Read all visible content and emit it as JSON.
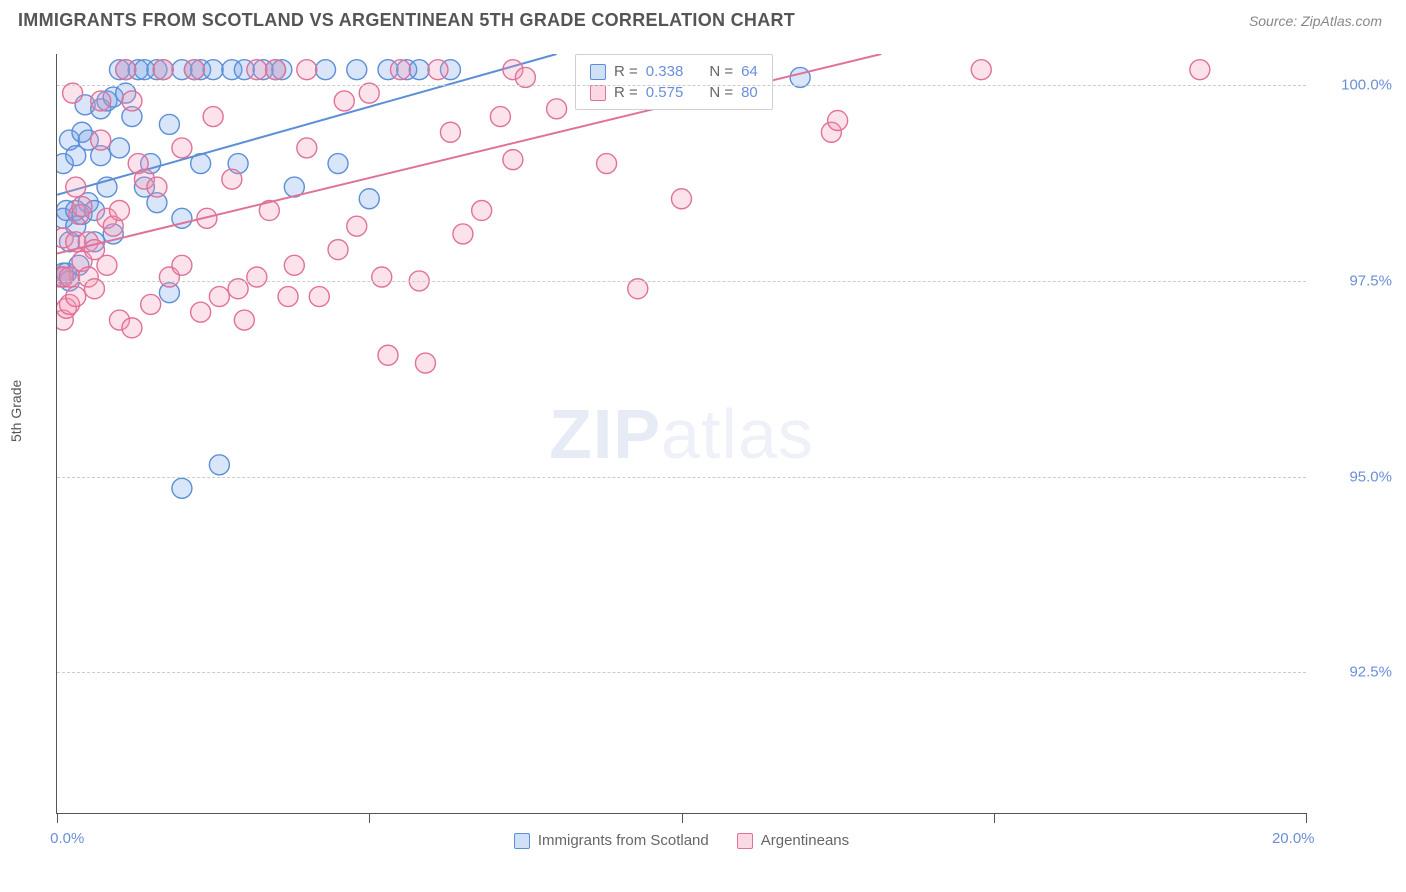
{
  "header": {
    "title": "IMMIGRANTS FROM SCOTLAND VS ARGENTINEAN 5TH GRADE CORRELATION CHART",
    "source": "Source: ZipAtlas.com"
  },
  "watermark": {
    "zip": "ZIP",
    "atlas": "atlas"
  },
  "chart": {
    "type": "scatter",
    "y_axis_label": "5th Grade",
    "x_axis_label": "",
    "xlim": [
      0,
      20
    ],
    "ylim": [
      90.7,
      100.4
    ],
    "x_ticks": [
      0,
      5,
      10,
      15,
      20
    ],
    "x_tick_labels": [
      "0.0%",
      "",
      "",
      "",
      "20.0%"
    ],
    "y_grid": [
      92.5,
      95.0,
      97.5,
      100.0
    ],
    "y_grid_labels": [
      "92.5%",
      "95.0%",
      "97.5%",
      "100.0%"
    ],
    "background_color": "#ffffff",
    "grid_color": "#cccccc",
    "axis_color": "#555555",
    "tick_label_color": "#6a8fd8",
    "axis_label_color": "#555555",
    "marker_radius": 10,
    "marker_stroke_width": 1.4,
    "line_width": 2,
    "series": [
      {
        "name": "Immigrants from Scotland",
        "color_fill": "rgba(120,160,230,0.28)",
        "color_stroke": "#5b8fd6",
        "swatch_fill": "#cfe0f7",
        "swatch_border": "#5b8fd6",
        "R": "0.338",
        "N": "64",
        "regression": {
          "x1": 0,
          "y1": 98.6,
          "x2": 8.0,
          "y2": 100.4
        },
        "points": [
          [
            0.1,
            97.6
          ],
          [
            0.1,
            97.55
          ],
          [
            0.1,
            98.3
          ],
          [
            0.1,
            99.0
          ],
          [
            0.15,
            98.4
          ],
          [
            0.15,
            97.6
          ],
          [
            0.2,
            97.5
          ],
          [
            0.2,
            98.0
          ],
          [
            0.2,
            99.3
          ],
          [
            0.3,
            98.2
          ],
          [
            0.3,
            98.4
          ],
          [
            0.3,
            99.1
          ],
          [
            0.35,
            97.7
          ],
          [
            0.4,
            99.4
          ],
          [
            0.4,
            98.35
          ],
          [
            0.45,
            99.75
          ],
          [
            0.5,
            99.3
          ],
          [
            0.5,
            98.5
          ],
          [
            0.6,
            98.0
          ],
          [
            0.6,
            98.4
          ],
          [
            0.7,
            99.7
          ],
          [
            0.7,
            99.1
          ],
          [
            0.8,
            99.8
          ],
          [
            0.8,
            98.7
          ],
          [
            0.9,
            99.85
          ],
          [
            0.9,
            98.1
          ],
          [
            1.0,
            100.2
          ],
          [
            1.0,
            99.2
          ],
          [
            1.1,
            99.9
          ],
          [
            1.1,
            100.2
          ],
          [
            1.2,
            99.6
          ],
          [
            1.3,
            100.2
          ],
          [
            1.4,
            100.2
          ],
          [
            1.4,
            98.7
          ],
          [
            1.5,
            99.0
          ],
          [
            1.6,
            100.2
          ],
          [
            1.6,
            98.5
          ],
          [
            1.7,
            100.2
          ],
          [
            1.8,
            99.5
          ],
          [
            1.8,
            97.35
          ],
          [
            2.0,
            100.2
          ],
          [
            2.0,
            98.3
          ],
          [
            2.0,
            94.85
          ],
          [
            2.2,
            100.2
          ],
          [
            2.3,
            100.2
          ],
          [
            2.3,
            99.0
          ],
          [
            2.5,
            100.2
          ],
          [
            2.6,
            95.15
          ],
          [
            2.8,
            100.2
          ],
          [
            2.9,
            99.0
          ],
          [
            3.0,
            100.2
          ],
          [
            3.3,
            100.2
          ],
          [
            3.5,
            100.2
          ],
          [
            3.6,
            100.2
          ],
          [
            3.8,
            98.7
          ],
          [
            4.3,
            100.2
          ],
          [
            4.5,
            99.0
          ],
          [
            4.8,
            100.2
          ],
          [
            5.0,
            98.55
          ],
          [
            5.3,
            100.2
          ],
          [
            5.6,
            100.2
          ],
          [
            5.8,
            100.2
          ],
          [
            6.3,
            100.2
          ],
          [
            11.9,
            100.1
          ]
        ]
      },
      {
        "name": "Argentineans",
        "color_fill": "rgba(245,150,180,0.28)",
        "color_stroke": "#e0719a",
        "swatch_fill": "#fbd9e3",
        "swatch_border": "#e0719a",
        "R": "0.575",
        "N": "80",
        "regression": {
          "x1": 0,
          "y1": 97.85,
          "x2": 13.2,
          "y2": 100.4
        },
        "points": [
          [
            0.05,
            97.55
          ],
          [
            0.1,
            97.55
          ],
          [
            0.1,
            97.0
          ],
          [
            0.1,
            98.05
          ],
          [
            0.15,
            97.15
          ],
          [
            0.2,
            97.55
          ],
          [
            0.2,
            97.2
          ],
          [
            0.25,
            99.9
          ],
          [
            0.3,
            97.3
          ],
          [
            0.3,
            98.7
          ],
          [
            0.3,
            98.0
          ],
          [
            0.35,
            98.35
          ],
          [
            0.4,
            97.75
          ],
          [
            0.4,
            98.45
          ],
          [
            0.5,
            98.0
          ],
          [
            0.5,
            97.55
          ],
          [
            0.6,
            97.9
          ],
          [
            0.6,
            97.4
          ],
          [
            0.7,
            99.3
          ],
          [
            0.7,
            99.8
          ],
          [
            0.8,
            98.3
          ],
          [
            0.8,
            97.7
          ],
          [
            0.9,
            98.2
          ],
          [
            1.0,
            97.0
          ],
          [
            1.0,
            98.4
          ],
          [
            1.1,
            100.2
          ],
          [
            1.2,
            99.8
          ],
          [
            1.2,
            96.9
          ],
          [
            1.3,
            99.0
          ],
          [
            1.4,
            98.8
          ],
          [
            1.5,
            97.2
          ],
          [
            1.6,
            98.7
          ],
          [
            1.7,
            100.2
          ],
          [
            1.8,
            97.55
          ],
          [
            2.0,
            97.7
          ],
          [
            2.0,
            99.2
          ],
          [
            2.2,
            100.2
          ],
          [
            2.3,
            97.1
          ],
          [
            2.4,
            98.3
          ],
          [
            2.5,
            99.6
          ],
          [
            2.6,
            97.3
          ],
          [
            2.8,
            98.8
          ],
          [
            2.9,
            97.4
          ],
          [
            3.0,
            97.0
          ],
          [
            3.2,
            97.55
          ],
          [
            3.2,
            100.2
          ],
          [
            3.4,
            98.4
          ],
          [
            3.5,
            100.2
          ],
          [
            3.7,
            97.3
          ],
          [
            3.8,
            97.7
          ],
          [
            4.0,
            99.2
          ],
          [
            4.0,
            100.2
          ],
          [
            4.2,
            97.3
          ],
          [
            4.5,
            97.9
          ],
          [
            4.6,
            99.8
          ],
          [
            4.8,
            98.2
          ],
          [
            5.0,
            99.9
          ],
          [
            5.2,
            97.55
          ],
          [
            5.3,
            96.55
          ],
          [
            5.5,
            100.2
          ],
          [
            5.8,
            97.5
          ],
          [
            5.9,
            96.45
          ],
          [
            6.1,
            100.2
          ],
          [
            6.3,
            99.4
          ],
          [
            6.5,
            98.1
          ],
          [
            6.8,
            98.4
          ],
          [
            7.1,
            99.6
          ],
          [
            7.3,
            100.2
          ],
          [
            7.3,
            99.05
          ],
          [
            7.5,
            100.1
          ],
          [
            8.0,
            99.7
          ],
          [
            8.5,
            100.2
          ],
          [
            8.8,
            99.0
          ],
          [
            9.3,
            97.4
          ],
          [
            10.0,
            98.55
          ],
          [
            11.0,
            100.2
          ],
          [
            12.4,
            99.4
          ],
          [
            12.5,
            99.55
          ],
          [
            14.8,
            100.2
          ],
          [
            18.3,
            100.2
          ]
        ]
      }
    ],
    "legend_top": {
      "r_label": "R =",
      "n_label": "N ="
    },
    "legend_bottom": {
      "items": [
        "Immigrants from Scotland",
        "Argentineans"
      ]
    }
  }
}
